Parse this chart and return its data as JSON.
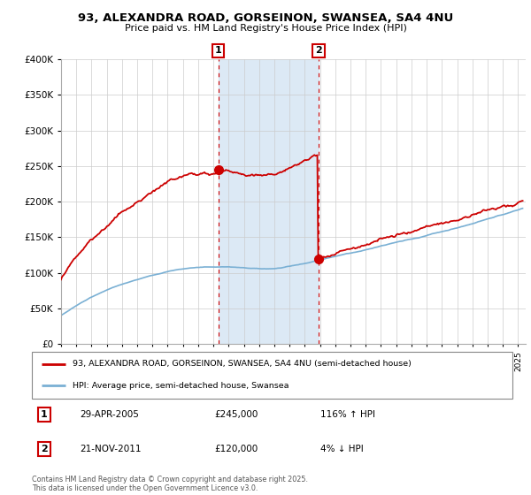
{
  "title": "93, ALEXANDRA ROAD, GORSEINON, SWANSEA, SA4 4NU",
  "subtitle": "Price paid vs. HM Land Registry's House Price Index (HPI)",
  "legend_line1": "93, ALEXANDRA ROAD, GORSEINON, SWANSEA, SA4 4NU (semi-detached house)",
  "legend_line2": "HPI: Average price, semi-detached house, Swansea",
  "annotation1_date": "29-APR-2005",
  "annotation1_price": "£245,000",
  "annotation1_hpi": "116% ↑ HPI",
  "annotation2_date": "21-NOV-2011",
  "annotation2_price": "£120,000",
  "annotation2_hpi": "4% ↓ HPI",
  "footer": "Contains HM Land Registry data © Crown copyright and database right 2025.\nThis data is licensed under the Open Government Licence v3.0.",
  "sale1_year": 2005.33,
  "sale1_price": 245000,
  "sale2_year": 2011.9,
  "sale2_price": 120000,
  "price_color": "#cc0000",
  "hpi_color": "#7ab0d4",
  "shade_color": "#dce9f5",
  "ylim": [
    0,
    400000
  ],
  "xlim": [
    1995,
    2025.5
  ],
  "background_color": "#ffffff",
  "grid_color": "#cccccc"
}
